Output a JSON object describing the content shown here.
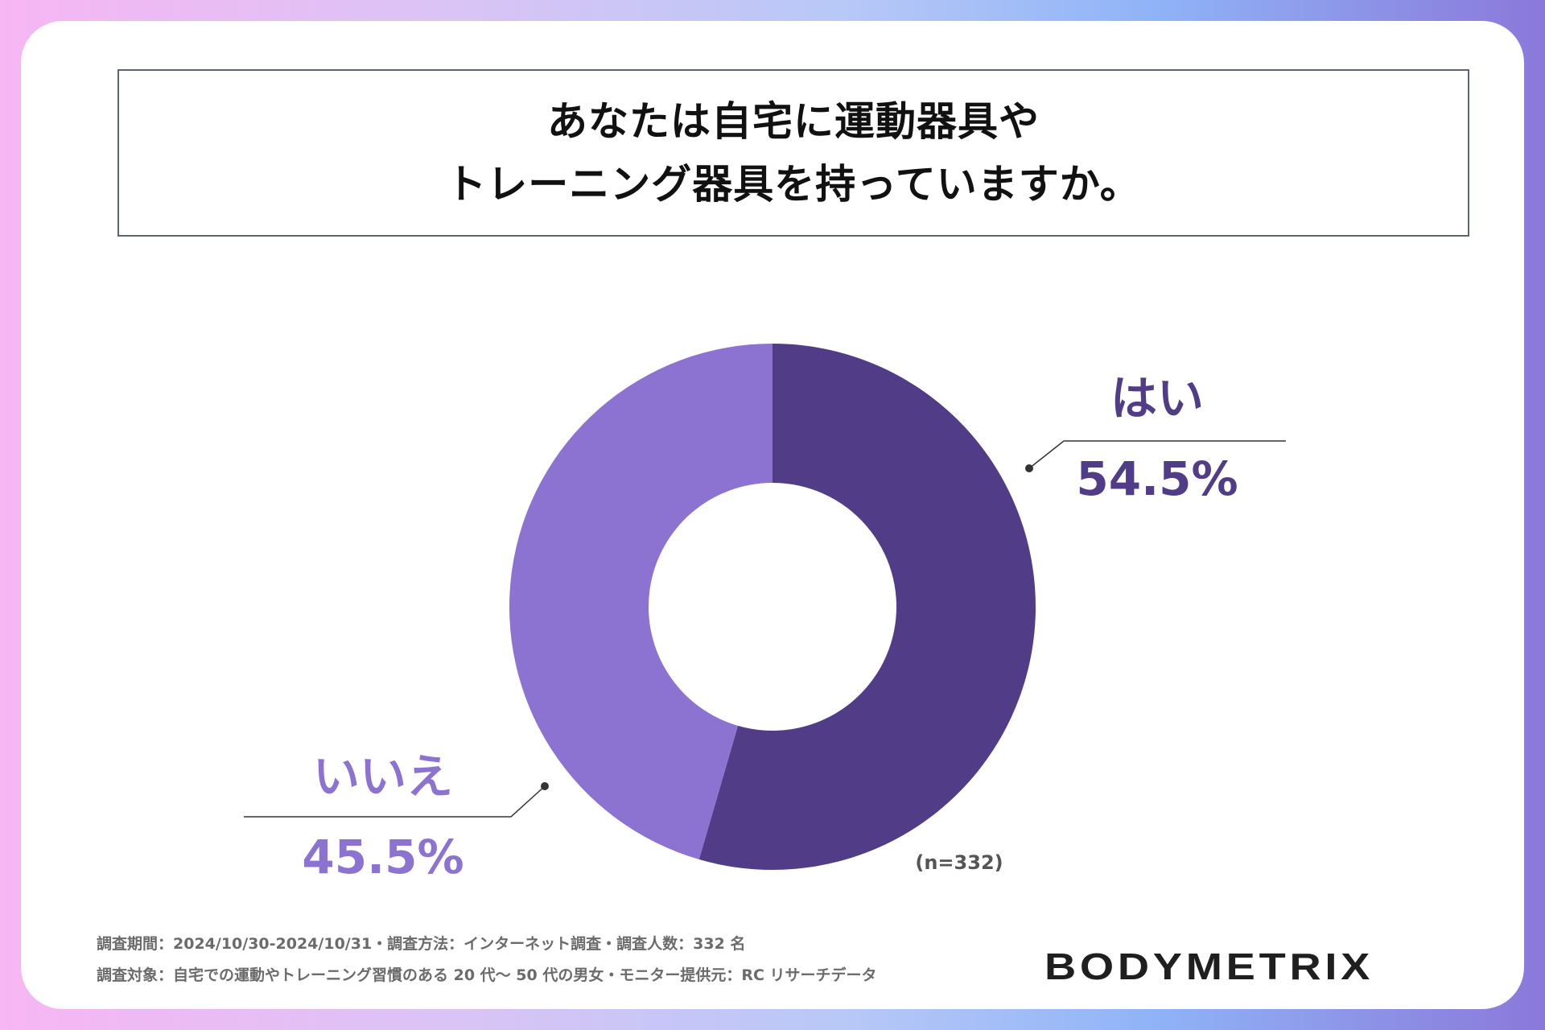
{
  "title": {
    "line1": "あなたは自宅に運動器具や",
    "line2": "トレーニング器具を持っていますか。"
  },
  "chart_data": {
    "type": "pie",
    "donut": true,
    "series": [
      {
        "name": "はい",
        "value": 54.5,
        "label": "54.5%",
        "color": "#513c87"
      },
      {
        "name": "いいえ",
        "value": 45.5,
        "label": "45.5%",
        "color": "#8c73d2"
      }
    ],
    "sample_size": "(n=332)"
  },
  "footer": {
    "line1": "調査期間：2024/10/30-2024/10/31・調査方法：インターネット調査・調査人数：332 名",
    "line2": "調査対象：自宅での運動やトレーニング習慣のある 20 代〜 50 代の男女・モニター提供元：RC リサーチデータ"
  },
  "logo": "BODYMETRIX",
  "colors": {
    "yes": "#513c87",
    "no": "#8c73d2",
    "leader": "#333333"
  }
}
